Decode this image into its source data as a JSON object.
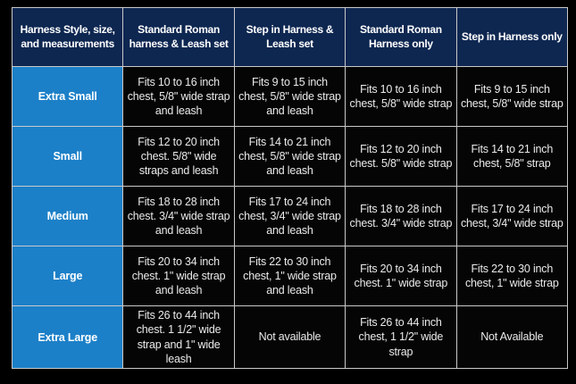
{
  "chart_data": {
    "type": "table",
    "title": "",
    "columns": [
      "Harness Style, size, and measurements",
      "Standard Roman harness & Leash set",
      "Step in Harness & Leash set",
      "Standard Roman Harness only",
      "Step in Harness only"
    ],
    "rows": [
      [
        "Extra Small",
        "Fits 10 to 16 inch chest, 5/8\" wide strap and leash",
        "Fits 9 to 15 inch chest, 5/8\" wide strap and leash",
        "Fits 10 to 16 inch chest, 5/8\" wide strap",
        "Fits 9 to 15 inch chest, 5/8\" wide strap"
      ],
      [
        "Small",
        "Fits 12 to 20 inch chest. 5/8\" wide straps and leash",
        "Fits 14 to 21 inch chest, 5/8\" wide strap and leash",
        "Fits 12 to 20 inch chest. 5/8\" wide strap",
        "Fits 14 to 21 inch chest, 5/8\" strap"
      ],
      [
        "Medium",
        "Fits 18 to 28 inch chest. 3/4\" wide strap and leash",
        "Fits 17 to 24 inch chest, 3/4\" wide strap and leash",
        "Fits 18 to 28 inch chest. 3/4\" wide strap",
        "Fits 17 to 24 inch chest, 3/4\" wide strap"
      ],
      [
        "Large",
        "Fits 20 to 34 inch chest. 1\" wide strap and leash",
        "Fits 22 to 30 inch chest, 1\" wide strap and leash",
        "Fits 20 to 34 inch chest. 1\" wide strap",
        "Fits 22 to 30 inch chest, 1\" wide strap"
      ],
      [
        "Extra Large",
        "Fits 26 to 44 inch chest. 1 1/2\" wide strap and 1\" wide leash",
        "Not available",
        "Fits 26 to 44 inch chest, 1 1/2\" wide strap",
        "Not Available"
      ]
    ],
    "layout": {
      "grid": "on",
      "header_row": true,
      "row_label_column": true
    }
  },
  "colors": {
    "page_bg": "#000000",
    "header_bg": "#0e2751",
    "size_column_bg": "#1c80c8",
    "cell_bg": "#050505",
    "grid_line": "#c9c9c9",
    "header_text": "#ffffff",
    "cell_text": "#eaeaea"
  }
}
